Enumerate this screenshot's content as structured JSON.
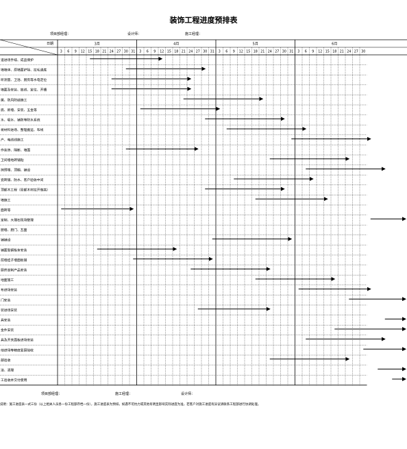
{
  "title": "装饰工程进度预排表",
  "header_info": {
    "project_manager": "项目部经理：",
    "designer": "设计师：",
    "construction_manager": "施工经理："
  },
  "date_label": "日期",
  "months": [
    "3月",
    "4月",
    "5月",
    "6月"
  ],
  "days": [
    3,
    6,
    9,
    12,
    15,
    18,
    21,
    24,
    27,
    30,
    31
  ],
  "day_ticks_visible_in_last_month": 10,
  "tasks": [
    {
      "name": "道进场手续、成品保护",
      "start": 4,
      "end": 14
    },
    {
      "name": "墙墙体、原墙面铲除、拉毛通底",
      "start": 9,
      "end": 20
    },
    {
      "name": "听测量、卫浴、厨房等水电定位",
      "start": 7,
      "end": 18
    },
    {
      "name": "墙面及安装、放线、定位、开槽",
      "start": 7,
      "end": 18
    },
    {
      "name": "属、防风防结施工",
      "start": 17,
      "end": 28
    },
    {
      "name": "底、新墙、安装、五金等",
      "start": 11,
      "end": 22
    },
    {
      "name": "水、吸水、铺防等防水系统",
      "start": 20,
      "end": 31
    },
    {
      "name": "将材料进场、整理搬运、布线",
      "start": 23,
      "end": 34
    },
    {
      "name": "户、电线线施工",
      "start": 32,
      "end": 43
    },
    {
      "name": "作装饰、隔断、墙面",
      "start": 9,
      "end": 19
    },
    {
      "name": "卫间墙地砖铺贴",
      "start": 29,
      "end": 40
    },
    {
      "name": "抹预埋、顶棚、铺设",
      "start": 34,
      "end": 45
    },
    {
      "name": "瓷砖铺、防水、客户验收中间",
      "start": 24,
      "end": 35
    },
    {
      "name": "顶部木工程（局部木材拉开做高）",
      "start": 20,
      "end": 31
    },
    {
      "name": "墙施工",
      "start": 27,
      "end": 37
    },
    {
      "name": "面砖等",
      "start": 0,
      "end": 10
    },
    {
      "name": "定制、大理石现场整理",
      "start": 43,
      "end": 54
    },
    {
      "name": "厨墙、厨门、瓦面",
      "start": null,
      "end": null
    },
    {
      "name": "铺铺设",
      "start": 21,
      "end": 32
    },
    {
      "name": "铺面型钢板条安装",
      "start": 5,
      "end": 16
    },
    {
      "name": "前墙挂子墙面板铺",
      "start": 10,
      "end": 21
    },
    {
      "name": "厨房定制产品安装",
      "start": 18,
      "end": 29
    },
    {
      "name": "地面施工",
      "start": 27,
      "end": 38
    },
    {
      "name": "布进场安装",
      "start": 33,
      "end": 43
    },
    {
      "name": "门安装",
      "start": 40,
      "end": 50
    },
    {
      "name": "装进场安装",
      "start": 19,
      "end": 29
    },
    {
      "name": "具安装",
      "start": 45,
      "end": 55
    },
    {
      "name": "金件安装",
      "start": 38,
      "end": 48
    },
    {
      "name": "具及开关面板进场安装",
      "start": 34,
      "end": 45
    },
    {
      "name": "他进场等精度复厨验收",
      "start": 42,
      "end": 53
    },
    {
      "name": "部验收",
      "start": 29,
      "end": 40
    },
    {
      "name": "洁、清理",
      "start": 44,
      "end": 56
    },
    {
      "name": "工验收并交付使用",
      "start": 46,
      "end": 57
    }
  ],
  "footer": {
    "project_manager": "项目部经理：",
    "construction_manager": "施工经理：",
    "designer": "设计师："
  },
  "note": "说明：施工进度表一式三份（以上相关人员各一份工程部存档一份），施工进度表为预排，如遇不可抗力或其他有明显影响实际进度为准，若客户对施工进度有异议请联系工程部进行协调处理。"
}
